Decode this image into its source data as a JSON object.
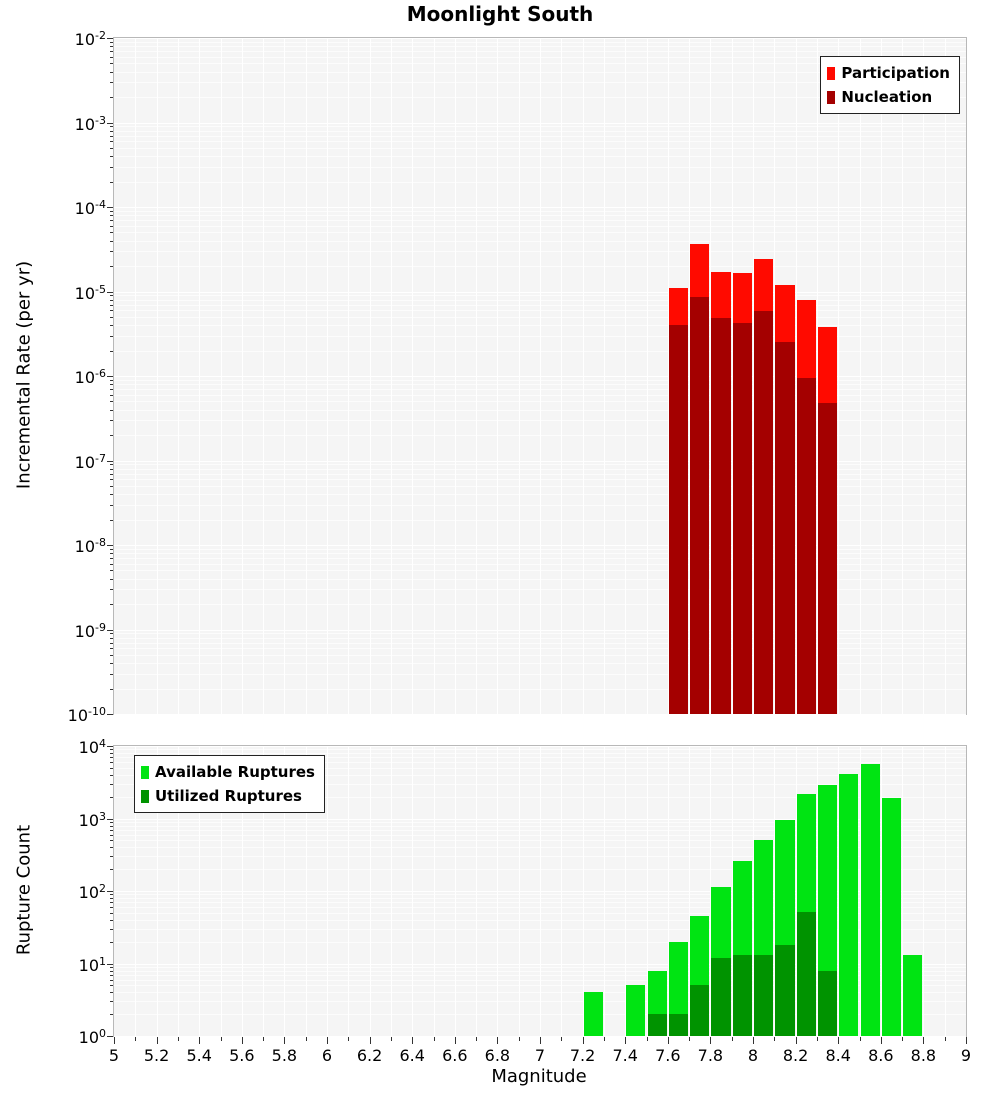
{
  "chart_data": [
    {
      "type": "bar",
      "title": "Moonlight South",
      "xlabel": "Magnitude",
      "ylabel": "Incremental Rate (per yr)",
      "x_range": [
        5,
        9
      ],
      "x_tick_step": 0.2,
      "y_scale": "log",
      "y_range": [
        1e-10,
        0.01
      ],
      "bin_width": 0.1,
      "grid": true,
      "legend_position": "top-right",
      "series": [
        {
          "name": "Participation",
          "color": "#ff0a00",
          "x": [
            7.65,
            7.75,
            7.85,
            7.95,
            8.05,
            8.15,
            8.25,
            8.35
          ],
          "values": [
            1.1e-05,
            3.6e-05,
            1.7e-05,
            1.65e-05,
            2.4e-05,
            1.2e-05,
            8e-06,
            3.8e-06
          ]
        },
        {
          "name": "Nucleation",
          "color": "#a40000",
          "x": [
            7.65,
            7.75,
            7.85,
            7.95,
            8.05,
            8.15,
            8.25,
            8.35
          ],
          "values": [
            4e-06,
            8.6e-06,
            4.9e-06,
            4.2e-06,
            5.9e-06,
            2.5e-06,
            9.5e-07,
            4.8e-07
          ]
        }
      ]
    },
    {
      "type": "bar",
      "title": "",
      "xlabel": "Magnitude",
      "ylabel": "Rupture Count",
      "x_range": [
        5,
        9
      ],
      "x_tick_step": 0.2,
      "y_scale": "log",
      "y_range": [
        1,
        10000
      ],
      "bin_width": 0.1,
      "grid": true,
      "legend_position": "top-left",
      "series": [
        {
          "name": "Available Ruptures",
          "color": "#00e412",
          "x": [
            7.25,
            7.45,
            7.55,
            7.65,
            7.75,
            7.85,
            7.95,
            8.05,
            8.15,
            8.25,
            8.35,
            8.45,
            8.55,
            8.65,
            8.75
          ],
          "values": [
            4,
            5,
            8,
            20,
            45,
            115,
            260,
            500,
            950,
            2200,
            2900,
            4100,
            5600,
            1900,
            13
          ]
        },
        {
          "name": "Utilized Ruptures",
          "color": "#009300",
          "x": [
            7.55,
            7.65,
            7.75,
            7.85,
            7.95,
            8.05,
            8.15,
            8.25,
            8.35
          ],
          "values": [
            2,
            2,
            5,
            12,
            13,
            13,
            18,
            52,
            8
          ]
        }
      ]
    }
  ]
}
